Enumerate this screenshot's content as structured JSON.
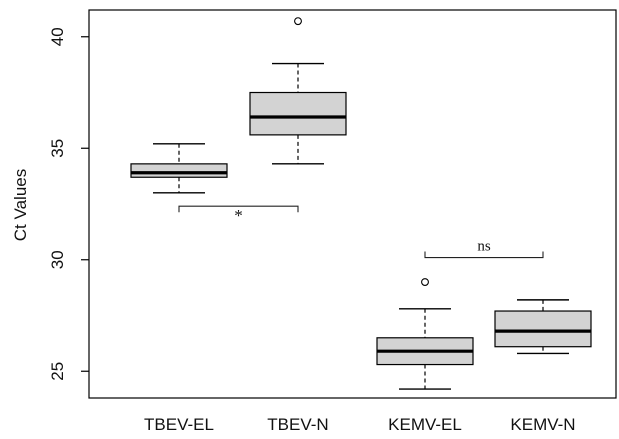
{
  "chart_data": {
    "type": "boxplot",
    "title": "",
    "xlabel": "",
    "ylabel": "Ct Values",
    "ylim": [
      23.8,
      41.2
    ],
    "yticks": [
      25,
      30,
      35,
      40
    ],
    "categories": [
      "TBEV-EL",
      "TBEV-N",
      "KEMV-EL",
      "KEMV-N"
    ],
    "boxes": [
      {
        "category": "TBEV-EL",
        "min": 33.0,
        "q1": 33.7,
        "median": 33.9,
        "q3": 34.3,
        "max": 35.2,
        "outliers": []
      },
      {
        "category": "TBEV-N",
        "min": 34.3,
        "q1": 35.6,
        "median": 36.4,
        "q3": 37.5,
        "max": 38.8,
        "outliers": [
          40.7
        ]
      },
      {
        "category": "KEMV-EL",
        "min": 24.2,
        "q1": 25.3,
        "median": 25.9,
        "q3": 26.5,
        "max": 27.8,
        "outliers": [
          29.0
        ]
      },
      {
        "category": "KEMV-N",
        "min": 25.8,
        "q1": 26.1,
        "median": 26.8,
        "q3": 27.7,
        "max": 28.2,
        "outliers": []
      }
    ],
    "comparisons": [
      {
        "from": "TBEV-EL",
        "to": "TBEV-N",
        "label": "*",
        "y": 32.4,
        "direction": "down"
      },
      {
        "from": "KEMV-EL",
        "to": "KEMV-N",
        "label": "ns",
        "y": 30.1,
        "direction": "up"
      }
    ],
    "colors": {
      "box_fill": "#d3d3d3",
      "stroke": "#000000"
    },
    "grid": false,
    "legend": "none"
  }
}
